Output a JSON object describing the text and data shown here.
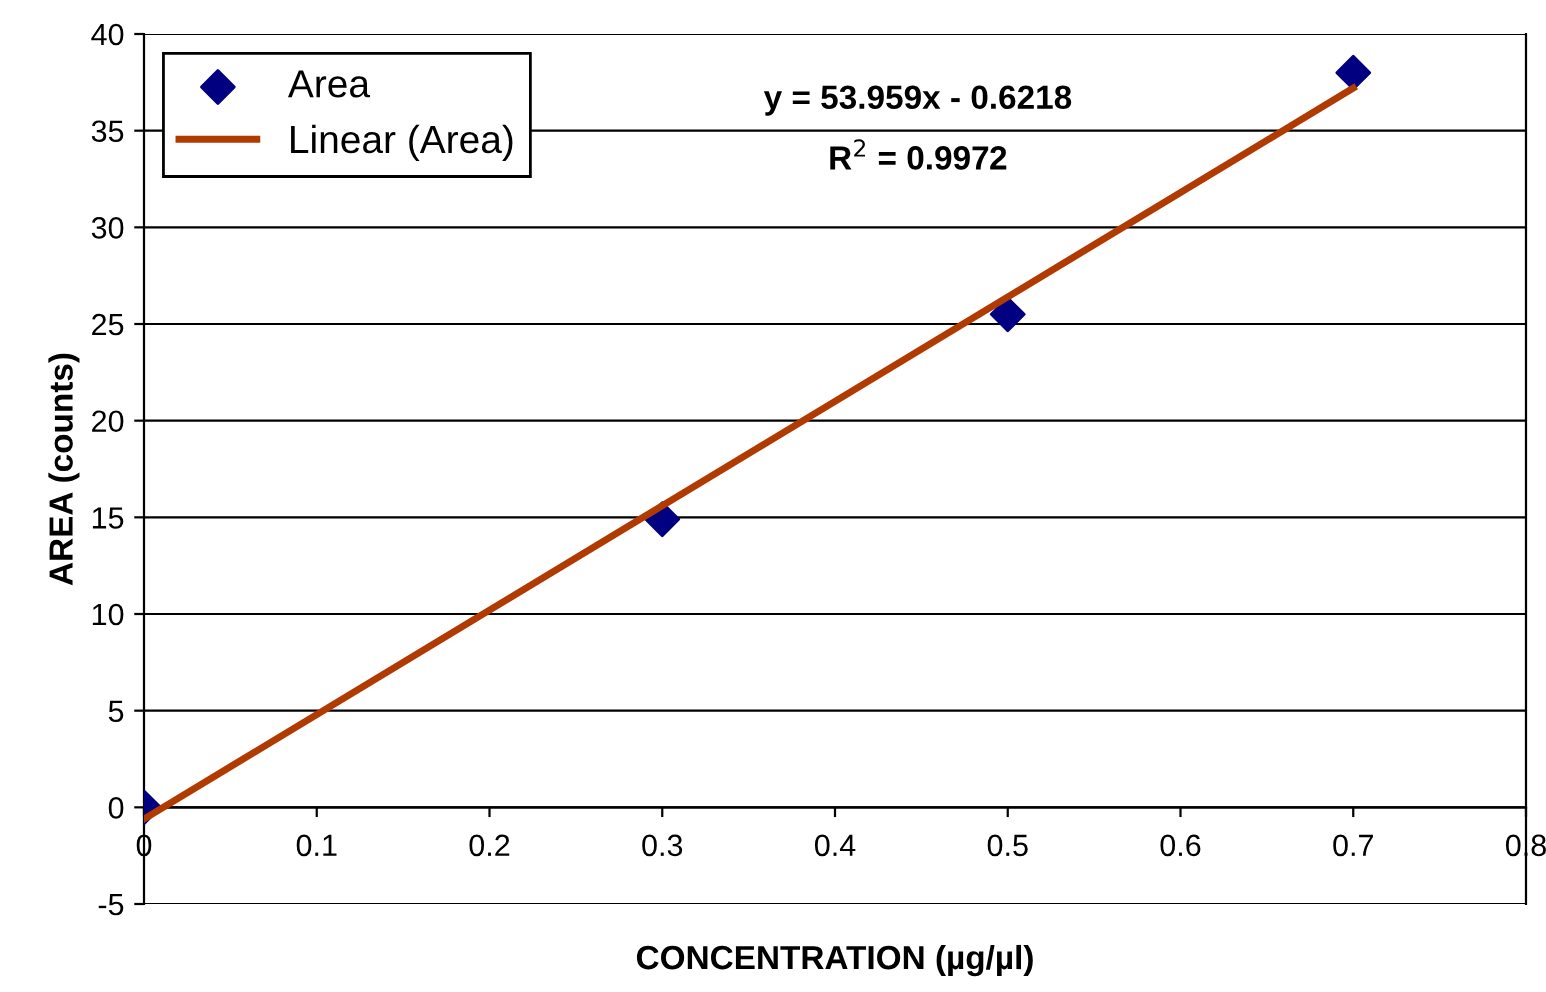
{
  "chart_data": {
    "type": "scatter",
    "xlabel": "CONCENTRATION (µg/µl)",
    "ylabel": "AREA (counts)",
    "series": [
      {
        "name": "Area",
        "color": "#000080",
        "marker": "diamond",
        "x": [
          0,
          0.3,
          0.5,
          0.7
        ],
        "values": [
          0,
          14.9,
          25.5,
          38
        ]
      },
      {
        "name": "Linear (Area)",
        "type": "line",
        "color": "#b03a00",
        "marker": "none",
        "line_style": "solid",
        "x": [
          0,
          0.7
        ],
        "values": [
          -0.6,
          37.2
        ]
      }
    ],
    "annotations": [
      "y = 53.959x - 0.6218",
      "R$^{2}$ = 0.9972"
    ],
    "xlim": [
      0,
      0.8
    ],
    "xticks": [
      0,
      0.1,
      0.2,
      0.3,
      0.4,
      0.5,
      0.6,
      0.7,
      0.8
    ],
    "ylim": [
      -5,
      40
    ],
    "yticks": [
      -5,
      0,
      5,
      10,
      15,
      20,
      25,
      30,
      35,
      40
    ],
    "grid": "y",
    "legend": "top left"
  }
}
